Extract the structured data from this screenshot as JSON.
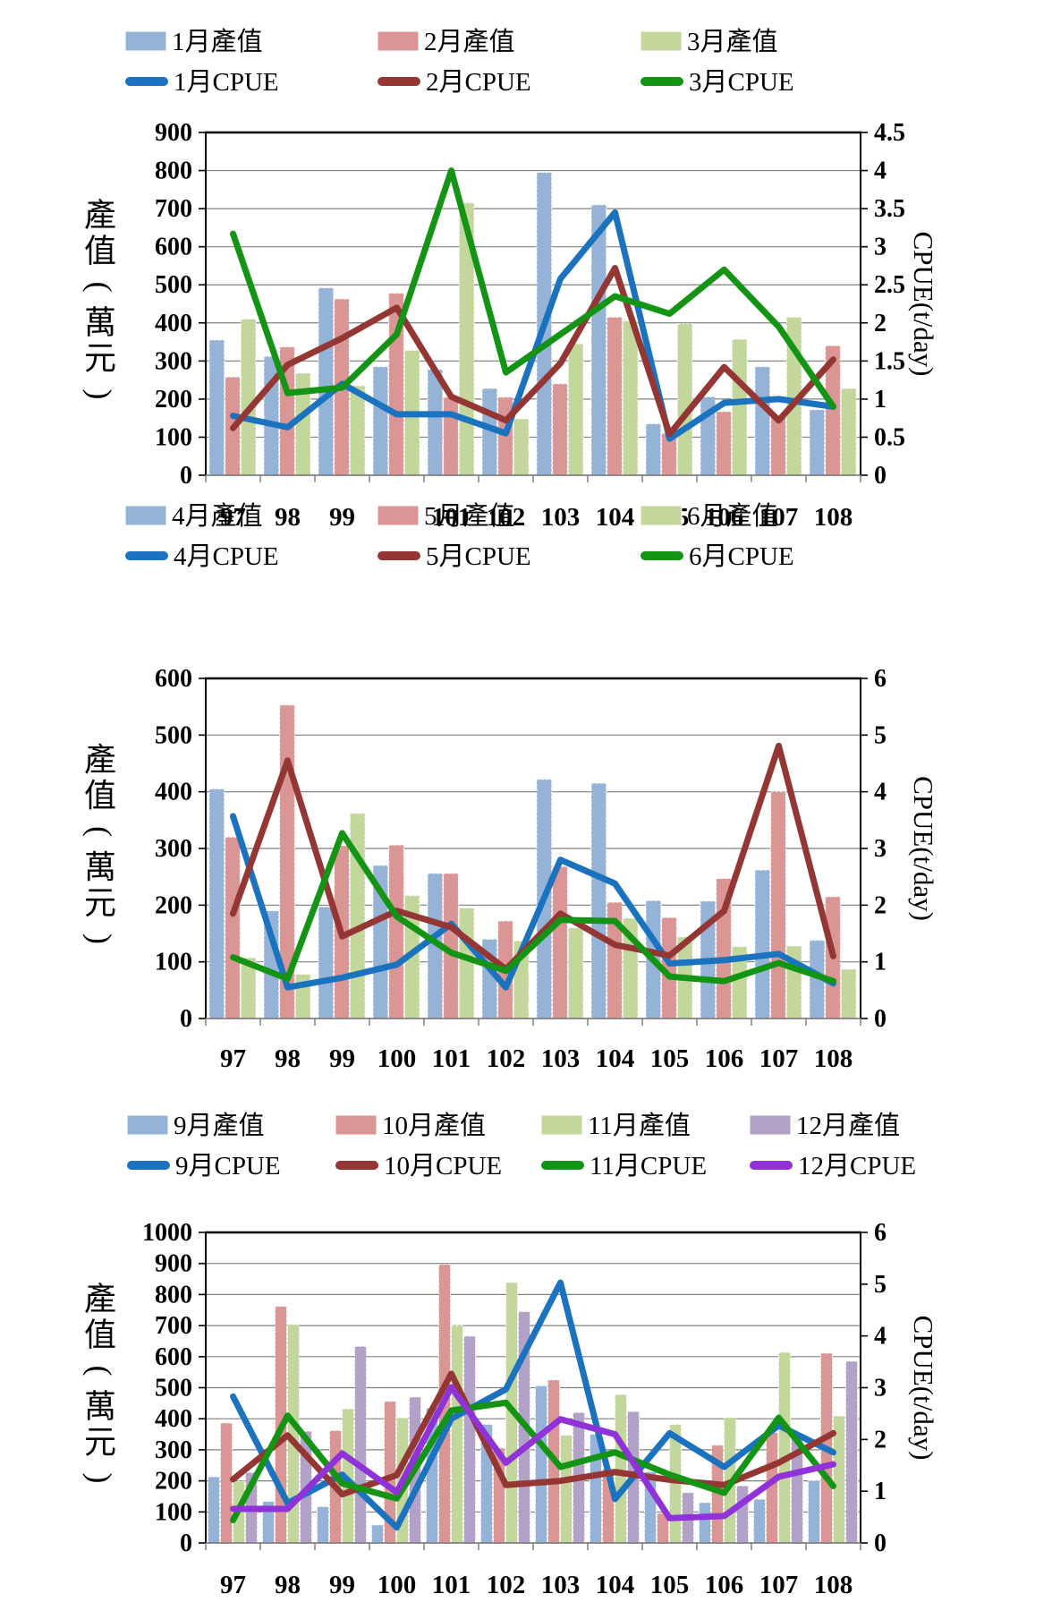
{
  "figure": {
    "background": "#ffffff",
    "left_axis_title": "產值(萬元)",
    "left_axis_title_chars": [
      "產",
      "值",
      "(",
      "萬",
      "元",
      ")"
    ],
    "right_axis_title": "CPUE(t/day)"
  },
  "colors": {
    "bar_blue": "#95B3D7",
    "bar_pink": "#D99694",
    "bar_green": "#C3D69B",
    "bar_purple": "#B2A2C7",
    "line_blue": "#1B72BF",
    "line_darkred": "#943634",
    "line_green": "#149414",
    "line_purple": "#8F32D8",
    "gridline": "#808080",
    "axis_black": "#000000",
    "baseline_gray": "#808080"
  },
  "chart_data": [
    {
      "type": "bar+line",
      "title": "",
      "categories": [
        "97",
        "98",
        "99",
        "100",
        "101",
        "102",
        "103",
        "104",
        "105",
        "106",
        "107",
        "108"
      ],
      "ylabel_left": "產值(萬元)",
      "ylabel_right": "CPUE(t/day)",
      "ylim_left": [
        0,
        900
      ],
      "ylim_right": [
        0,
        4.5
      ],
      "yticks_left": [
        "0",
        "100",
        "200",
        "300",
        "400",
        "500",
        "600",
        "700",
        "800",
        "900"
      ],
      "yticks_right": [
        "0",
        "0.5",
        "1",
        "1.5",
        "2",
        "2.5",
        "3",
        "3.5",
        "4",
        "4.5"
      ],
      "grid": true,
      "legend_position": "top",
      "bar_series": [
        {
          "name": "1月產值",
          "color": "#95B3D7",
          "values": [
            355,
            312,
            492,
            285,
            278,
            228,
            795,
            710,
            135,
            206,
            285,
            172
          ]
        },
        {
          "name": "2月產值",
          "color": "#D99694",
          "values": [
            258,
            337,
            463,
            478,
            205,
            205,
            240,
            415,
            110,
            167,
            155,
            340
          ]
        },
        {
          "name": "3月產值",
          "color": "#C3D69B",
          "values": [
            410,
            268,
            235,
            328,
            715,
            148,
            345,
            405,
            398,
            357,
            415,
            228
          ]
        }
      ],
      "line_series": [
        {
          "name": "1月CPUE",
          "color": "#1B72BF",
          "values": [
            0.78,
            0.63,
            1.2,
            0.8,
            0.8,
            0.55,
            2.58,
            3.45,
            0.48,
            0.95,
            1.0,
            0.9
          ]
        },
        {
          "name": "2月CPUE",
          "color": "#943634",
          "values": [
            0.62,
            1.45,
            1.8,
            2.2,
            1.03,
            0.72,
            1.47,
            2.72,
            0.54,
            1.42,
            0.72,
            1.52
          ]
        },
        {
          "name": "3月CPUE",
          "color": "#149414",
          "values": [
            3.17,
            1.08,
            1.15,
            1.85,
            4.0,
            1.35,
            1.85,
            2.35,
            2.12,
            2.7,
            1.95,
            0.9
          ]
        }
      ]
    },
    {
      "type": "bar+line",
      "title": "",
      "categories": [
        "97",
        "98",
        "99",
        "100",
        "101",
        "102",
        "103",
        "104",
        "105",
        "106",
        "107",
        "108"
      ],
      "ylabel_left": "產值(萬元)",
      "ylabel_right": "CPUE(t/day)",
      "ylim_left": [
        0,
        600
      ],
      "ylim_right": [
        0,
        6
      ],
      "yticks_left": [
        "0",
        "100",
        "200",
        "300",
        "400",
        "500",
        "600"
      ],
      "yticks_right": [
        "0",
        "1",
        "2",
        "3",
        "4",
        "5",
        "6"
      ],
      "grid": true,
      "legend_position": "top",
      "bar_series": [
        {
          "name": "4月產值",
          "color": "#95B3D7",
          "values": [
            405,
            190,
            197,
            270,
            256,
            140,
            422,
            415,
            208,
            207,
            262,
            138
          ]
        },
        {
          "name": "5月產值",
          "color": "#D99694",
          "values": [
            320,
            553,
            305,
            306,
            256,
            172,
            268,
            205,
            178,
            247,
            400,
            215
          ]
        },
        {
          "name": "6月產值",
          "color": "#C3D69B",
          "values": [
            107,
            78,
            362,
            217,
            195,
            137,
            160,
            177,
            144,
            127,
            128,
            87
          ]
        }
      ],
      "line_series": [
        {
          "name": "4月CPUE",
          "color": "#1B72BF",
          "values": [
            3.57,
            0.55,
            0.72,
            0.95,
            1.67,
            0.55,
            2.8,
            2.38,
            0.97,
            1.03,
            1.14,
            0.62
          ]
        },
        {
          "name": "5月CPUE",
          "color": "#943634",
          "values": [
            1.85,
            4.55,
            1.45,
            1.9,
            1.61,
            0.87,
            1.85,
            1.3,
            1.11,
            1.9,
            4.81,
            1.1
          ]
        },
        {
          "name": "6月CPUE",
          "color": "#149414",
          "values": [
            1.08,
            0.7,
            3.27,
            1.8,
            1.16,
            0.84,
            1.74,
            1.72,
            0.74,
            0.66,
            0.98,
            0.66
          ]
        }
      ]
    },
    {
      "type": "bar+line",
      "title": "",
      "categories": [
        "97",
        "98",
        "99",
        "100",
        "101",
        "102",
        "103",
        "104",
        "105",
        "106",
        "107",
        "108"
      ],
      "ylabel_left": "產值(萬元)",
      "ylabel_right": "CPUE(t/day)",
      "ylim_left": [
        0,
        1000
      ],
      "ylim_right": [
        0,
        6
      ],
      "yticks_left": [
        "0",
        "100",
        "200",
        "300",
        "400",
        "500",
        "600",
        "700",
        "800",
        "900",
        "1000"
      ],
      "yticks_right": [
        "0",
        "1",
        "2",
        "3",
        "4",
        "5",
        "6"
      ],
      "grid": true,
      "legend_position": "top",
      "bar_series": [
        {
          "name": "9月產值",
          "color": "#95B3D7",
          "values": [
            213,
            134,
            117,
            58,
            435,
            382,
            506,
            350,
            229,
            130,
            141,
            201
          ]
        },
        {
          "name": "10月產值",
          "color": "#D99694",
          "values": [
            386,
            762,
            362,
            456,
            897,
            306,
            525,
            240,
            96,
            315,
            356,
            611
          ]
        },
        {
          "name": "11月產值",
          "color": "#C3D69B",
          "values": [
            199,
            704,
            432,
            403,
            700,
            839,
            347,
            478,
            382,
            404,
            614,
            409
          ]
        },
        {
          "name": "12月產值",
          "color": "#B2A2C7",
          "values": [
            227,
            360,
            633,
            470,
            666,
            745,
            420,
            423,
            162,
            184,
            353,
            585
          ]
        }
      ],
      "line_series": [
        {
          "name": "9月CPUE",
          "color": "#1B72BF",
          "values": [
            2.83,
            0.77,
            1.32,
            0.3,
            2.4,
            2.97,
            5.03,
            0.85,
            2.12,
            1.47,
            2.27,
            1.75
          ]
        },
        {
          "name": "10月CPUE",
          "color": "#943634",
          "values": [
            1.23,
            2.08,
            0.94,
            1.31,
            3.27,
            1.12,
            1.2,
            1.37,
            1.22,
            1.12,
            1.55,
            2.12
          ]
        },
        {
          "name": "11月CPUE",
          "color": "#149414",
          "values": [
            0.44,
            2.46,
            1.15,
            0.86,
            2.56,
            2.71,
            1.47,
            1.75,
            1.32,
            0.97,
            2.42,
            1.1
          ]
        },
        {
          "name": "12月CPUE",
          "color": "#8F32D8",
          "values": [
            0.66,
            0.66,
            1.73,
            0.98,
            3.01,
            1.55,
            2.39,
            2.1,
            0.48,
            0.52,
            1.28,
            1.52
          ]
        }
      ]
    }
  ]
}
